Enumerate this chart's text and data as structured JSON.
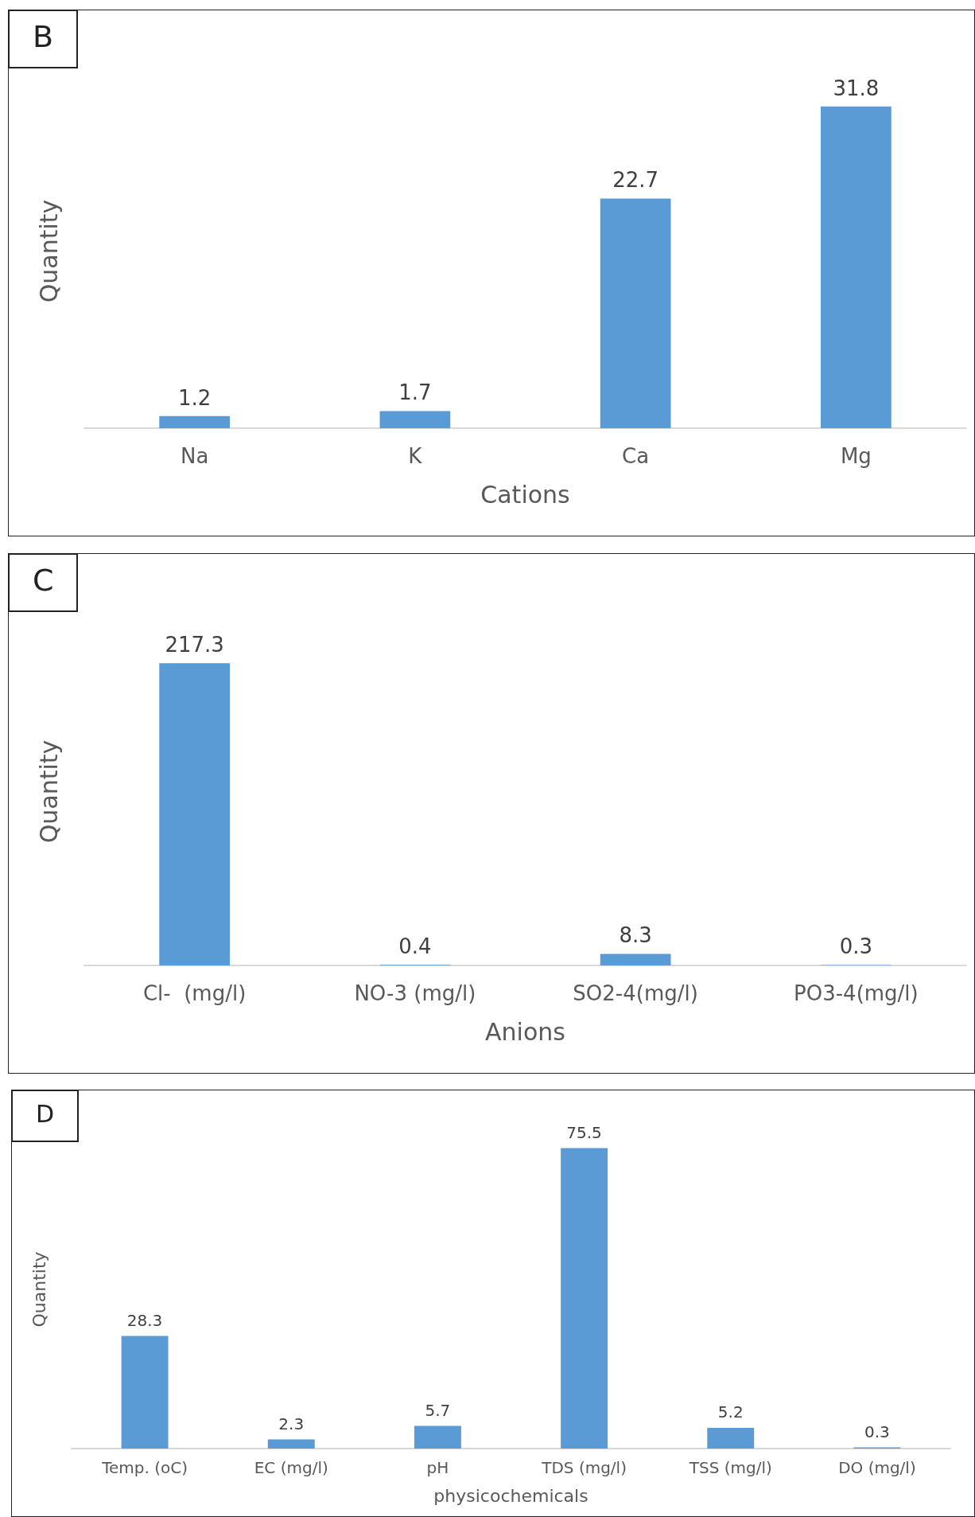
{
  "chart_data": [
    {
      "type": "bar",
      "title": "B",
      "ylabel": "Quantity",
      "xlabel": "Cations",
      "categories": [
        "Na",
        "K",
        "Ca",
        "Mg"
      ],
      "values": [
        1.2,
        1.7,
        22.7,
        31.8
      ],
      "color": "#5b9bd5",
      "data_labels": true
    },
    {
      "type": "bar",
      "title": "C",
      "ylabel": "Quantity",
      "xlabel": "Anions",
      "categories": [
        "Cl-  (mg/l)",
        "NO-3 (mg/l)",
        "SO2-4(mg/l)",
        "PO3-4(mg/l)"
      ],
      "values": [
        217.3,
        0.4,
        8.3,
        0.3
      ],
      "color": "#5b9bd5",
      "data_labels": true
    },
    {
      "type": "bar",
      "title": "D",
      "ylabel": "Quantity",
      "xlabel": "physicochemicals",
      "categories": [
        "Temp. (oC)",
        "EC (mg/l)",
        "pH",
        "TDS (mg/l)",
        "TSS (mg/l)",
        "DO (mg/l)"
      ],
      "values": [
        28.3,
        2.3,
        5.7,
        75.5,
        5.2,
        0.3
      ],
      "color": "#5b9bd5",
      "data_labels": true
    }
  ]
}
